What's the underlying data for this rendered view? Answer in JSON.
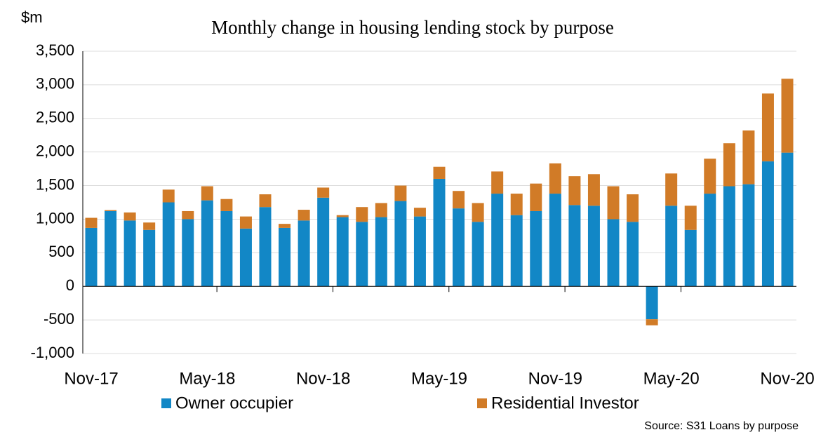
{
  "chart_data": {
    "type": "bar",
    "stacked": true,
    "title": "Monthly change in housing lending stock by purpose",
    "y_label": "$m",
    "source": "Source: S31 Loans by purpose",
    "categories": [
      "Nov-17",
      null,
      null,
      null,
      null,
      null,
      "May-18",
      null,
      null,
      null,
      null,
      null,
      "Nov-18",
      null,
      null,
      null,
      null,
      null,
      "May-19",
      null,
      null,
      null,
      null,
      null,
      "Nov-19",
      null,
      null,
      null,
      null,
      null,
      "May-20",
      null,
      null,
      null,
      null,
      null,
      "Nov-20"
    ],
    "series": [
      {
        "name": "Owner occupier",
        "color": "#1287c6",
        "values": [
          870,
          1120,
          980,
          840,
          1250,
          1000,
          1280,
          1120,
          860,
          1180,
          870,
          980,
          1320,
          1030,
          960,
          1030,
          1270,
          1040,
          1600,
          1160,
          960,
          1380,
          1060,
          1120,
          1380,
          1210,
          1200,
          1000,
          960,
          -490,
          1200,
          840,
          1380,
          1490,
          1520,
          1860,
          1990
        ]
      },
      {
        "name": "Residential Investor",
        "color": "#d17b27",
        "values": [
          150,
          15,
          120,
          110,
          190,
          120,
          210,
          180,
          180,
          190,
          60,
          160,
          150,
          30,
          220,
          210,
          230,
          130,
          180,
          260,
          280,
          330,
          320,
          410,
          450,
          430,
          470,
          490,
          410,
          -90,
          480,
          360,
          520,
          640,
          800,
          1010,
          1100
        ]
      }
    ],
    "ylim": [
      -1000,
      3500
    ],
    "yticks": [
      {
        "value": -1000,
        "label": "-1,000"
      },
      -500,
      0,
      500,
      {
        "value": 1000,
        "label": "1,000"
      },
      {
        "value": 1500,
        "label": "1,500"
      },
      {
        "value": 2000,
        "label": "2,000"
      },
      {
        "value": 2500,
        "label": "2,500"
      },
      {
        "value": 3000,
        "label": "3,000"
      },
      {
        "value": 3500,
        "label": "3,500"
      }
    ],
    "grid": true
  }
}
